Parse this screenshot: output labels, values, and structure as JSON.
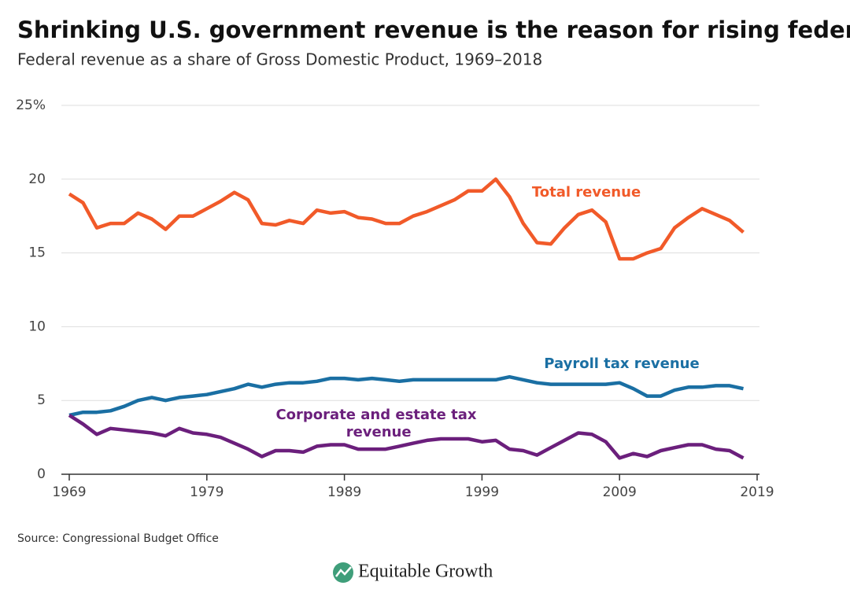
{
  "chart_data": {
    "type": "line",
    "title": "Shrinking U.S. government revenue is the reason for rising federal deficits",
    "subtitle": "Federal revenue as a share of Gross Domestic Product, 1969–2018",
    "x": [
      1969,
      1970,
      1971,
      1972,
      1973,
      1974,
      1975,
      1976,
      1977,
      1978,
      1979,
      1980,
      1981,
      1982,
      1983,
      1984,
      1985,
      1986,
      1987,
      1988,
      1989,
      1990,
      1991,
      1992,
      1993,
      1994,
      1995,
      1996,
      1997,
      1998,
      1999,
      2000,
      2001,
      2002,
      2003,
      2004,
      2005,
      2006,
      2007,
      2008,
      2009,
      2010,
      2011,
      2012,
      2013,
      2014,
      2015,
      2016,
      2017,
      2018
    ],
    "series": [
      {
        "name": "Total revenue",
        "color": "#f15a29",
        "values": [
          19.0,
          18.4,
          16.7,
          17.0,
          17.0,
          17.7,
          17.3,
          16.6,
          17.5,
          17.5,
          18.0,
          18.5,
          19.1,
          18.6,
          17.0,
          16.9,
          17.2,
          17.0,
          17.9,
          17.7,
          17.8,
          17.4,
          17.3,
          17.0,
          17.0,
          17.5,
          17.8,
          18.2,
          18.6,
          19.2,
          19.2,
          20.0,
          18.8,
          17.0,
          15.7,
          15.6,
          16.7,
          17.6,
          17.9,
          17.1,
          14.6,
          14.6,
          15.0,
          15.3,
          16.7,
          17.4,
          18.0,
          17.6,
          17.2,
          16.4
        ]
      },
      {
        "name": "Payroll tax revenue",
        "color": "#1a6fa3",
        "values": [
          4.0,
          4.2,
          4.2,
          4.3,
          4.6,
          5.0,
          5.2,
          5.0,
          5.2,
          5.3,
          5.4,
          5.6,
          5.8,
          6.1,
          5.9,
          6.1,
          6.2,
          6.2,
          6.3,
          6.5,
          6.5,
          6.4,
          6.5,
          6.4,
          6.3,
          6.4,
          6.4,
          6.4,
          6.4,
          6.4,
          6.4,
          6.4,
          6.6,
          6.4,
          6.2,
          6.1,
          6.1,
          6.1,
          6.1,
          6.1,
          6.2,
          5.8,
          5.3,
          5.3,
          5.7,
          5.9,
          5.9,
          6.0,
          6.0,
          5.8
        ]
      },
      {
        "name": "Corporate and estate tax revenue",
        "color": "#6b1f7c",
        "values": [
          4.0,
          3.4,
          2.7,
          3.1,
          3.0,
          2.9,
          2.8,
          2.6,
          3.1,
          2.8,
          2.7,
          2.5,
          2.1,
          1.7,
          1.2,
          1.6,
          1.6,
          1.5,
          1.9,
          2.0,
          2.0,
          1.7,
          1.7,
          1.7,
          1.9,
          2.1,
          2.3,
          2.4,
          2.4,
          2.4,
          2.2,
          2.3,
          1.7,
          1.6,
          1.3,
          1.8,
          2.3,
          2.8,
          2.7,
          2.2,
          1.1,
          1.4,
          1.2,
          1.6,
          1.8,
          2.0,
          2.0,
          1.7,
          1.6,
          1.1
        ]
      }
    ],
    "xlim": [
      1969,
      2019
    ],
    "xticks": [
      1969,
      1979,
      1989,
      1999,
      2009,
      2019
    ],
    "ylim": [
      0,
      25
    ],
    "yticks": [
      0,
      5,
      10,
      15,
      20,
      {
        "value": 25,
        "label": "25%"
      }
    ],
    "grid": true
  },
  "source": "Source: Congressional Budget Office",
  "brand": "Equitable Growth"
}
